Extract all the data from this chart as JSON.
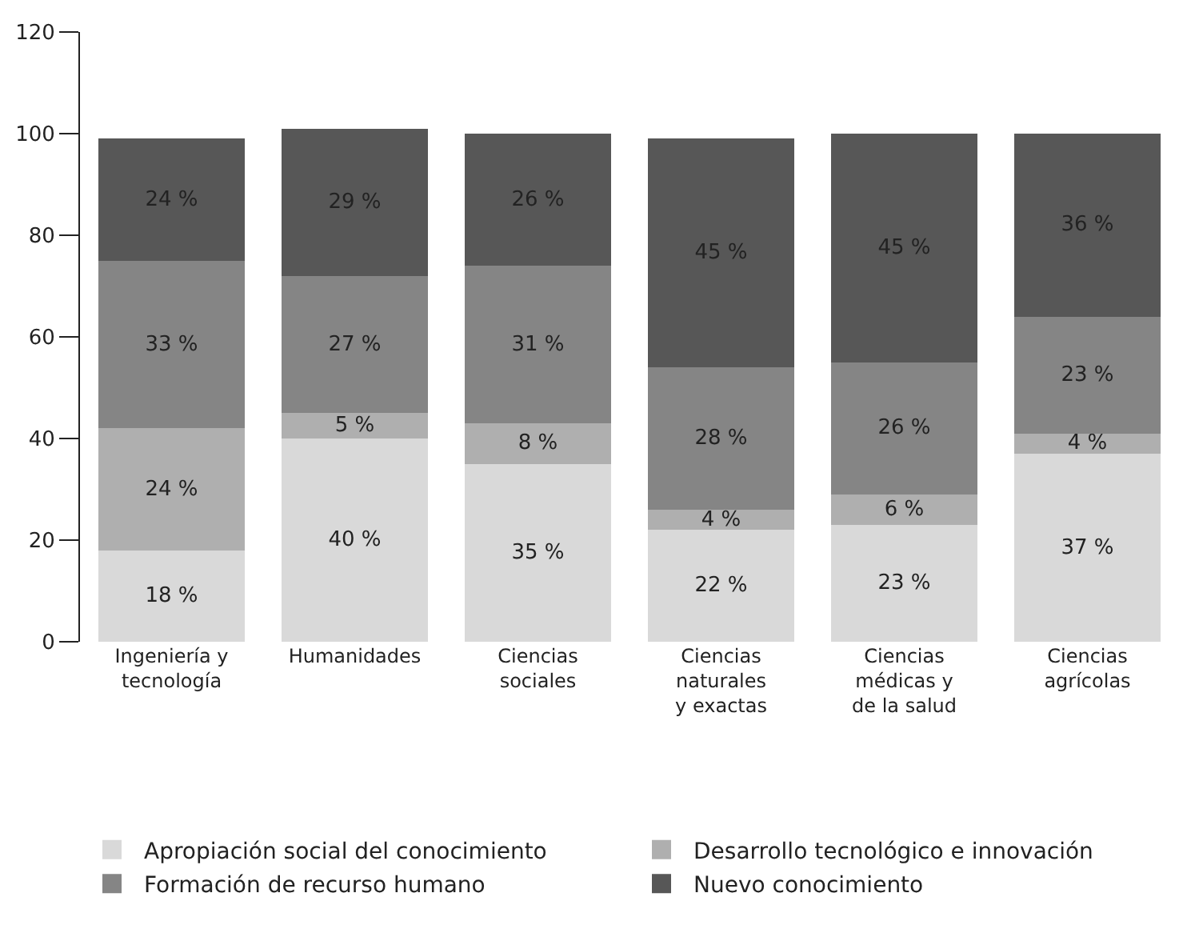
{
  "chart_data": {
    "type": "bar",
    "stacked": true,
    "categories": [
      "Ingeniería y\ntecnología",
      "Humanidades",
      "Ciencias\nsociales",
      "Ciencias\nnaturales\ny exactas",
      "Ciencias\nmédicas y\nde la salud",
      "Ciencias\nagrícolas"
    ],
    "series": [
      {
        "name": "Apropiación social del conocimiento",
        "color": "#d9d9d9",
        "values": [
          18,
          40,
          35,
          22,
          23,
          37
        ],
        "value_labels": [
          "18 %",
          "40 %",
          "35 %",
          "22 %",
          "23 %",
          "37 %"
        ]
      },
      {
        "name": "Desarrollo tecnológico e innovación",
        "color": "#afafaf",
        "values": [
          24,
          5,
          8,
          4,
          6,
          4
        ],
        "value_labels": [
          "24 %",
          "5 %",
          "8 %",
          "4 %",
          "6 %",
          "4 %"
        ]
      },
      {
        "name": "Formación de recurso humano",
        "color": "#858585",
        "values": [
          33,
          27,
          31,
          28,
          26,
          23
        ],
        "value_labels": [
          "33 %",
          "27 %",
          "31 %",
          "28 %",
          "26 %",
          "23 %"
        ]
      },
      {
        "name": "Nuevo conocimiento",
        "color": "#575757",
        "values": [
          24,
          29,
          26,
          45,
          45,
          36
        ],
        "value_labels": [
          "24 %",
          "29 %",
          "26 %",
          "45 %",
          "45 %",
          "36 %"
        ]
      }
    ],
    "ylim": [
      0,
      120
    ],
    "yticks": [
      0,
      20,
      40,
      60,
      80,
      100,
      120
    ],
    "grid": false,
    "legend": "bottom"
  }
}
